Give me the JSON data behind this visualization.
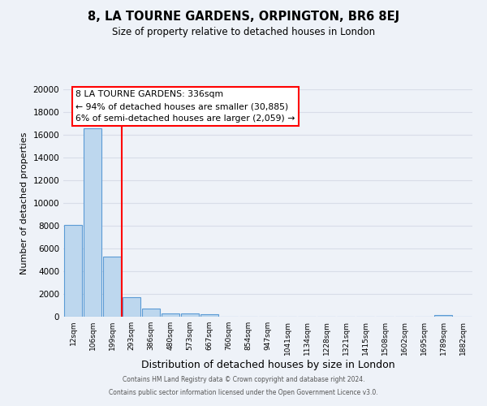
{
  "title": "8, LA TOURNE GARDENS, ORPINGTON, BR6 8EJ",
  "subtitle": "Size of property relative to detached houses in London",
  "xlabel": "Distribution of detached houses by size in London",
  "ylabel": "Number of detached properties",
  "bin_labels": [
    "12sqm",
    "106sqm",
    "199sqm",
    "293sqm",
    "386sqm",
    "480sqm",
    "573sqm",
    "667sqm",
    "760sqm",
    "854sqm",
    "947sqm",
    "1041sqm",
    "1134sqm",
    "1228sqm",
    "1321sqm",
    "1415sqm",
    "1508sqm",
    "1602sqm",
    "1695sqm",
    "1789sqm",
    "1882sqm"
  ],
  "bar_values": [
    8100,
    16600,
    5300,
    1750,
    750,
    300,
    270,
    200,
    0,
    0,
    0,
    0,
    0,
    0,
    0,
    0,
    0,
    0,
    0,
    150,
    0
  ],
  "bar_color": "#bdd7ee",
  "bar_edge_color": "#5b9bd5",
  "vline_x": 2.5,
  "vline_color": "red",
  "ylim": [
    0,
    20000
  ],
  "yticks": [
    0,
    2000,
    4000,
    6000,
    8000,
    10000,
    12000,
    14000,
    16000,
    18000,
    20000
  ],
  "annotation_title": "8 LA TOURNE GARDENS: 336sqm",
  "annotation_line1": "← 94% of detached houses are smaller (30,885)",
  "annotation_line2": "6% of semi-detached houses are larger (2,059) →",
  "annotation_box_color": "white",
  "annotation_box_edge": "red",
  "footer1": "Contains HM Land Registry data © Crown copyright and database right 2024.",
  "footer2": "Contains public sector information licensed under the Open Government Licence v3.0.",
  "background_color": "#eef2f8",
  "grid_color": "#d8dde8",
  "ylabel_fontsize": 8,
  "xlabel_fontsize": 9
}
